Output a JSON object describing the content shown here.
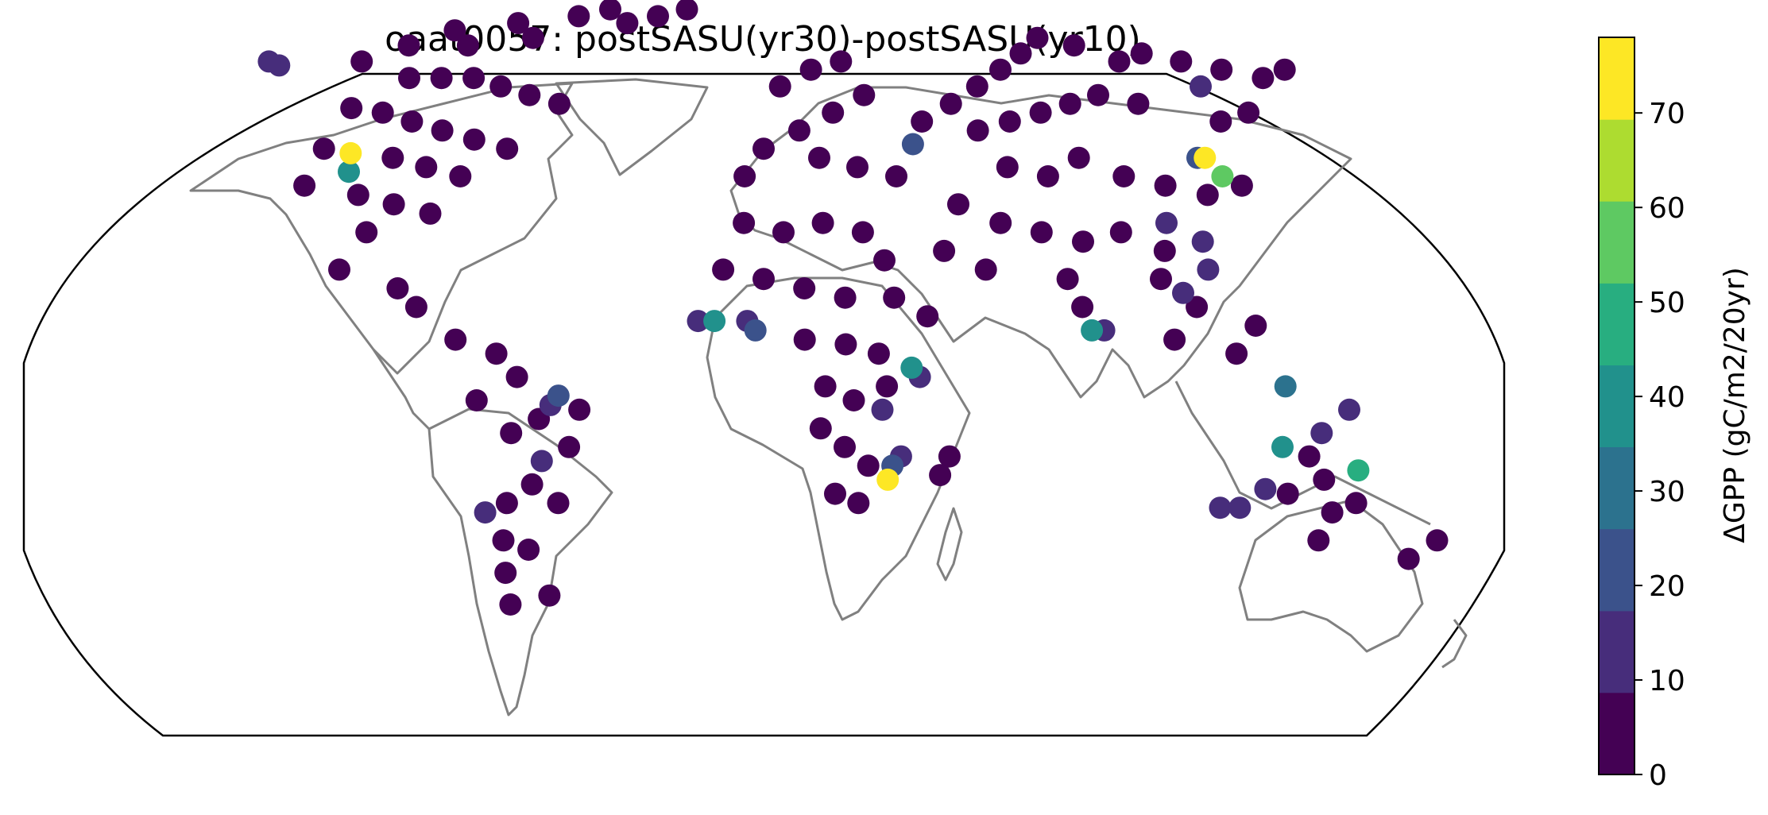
{
  "chart_data": {
    "type": "scatter",
    "projection": "Robinson",
    "title": "oaat0057: postSASU(yr30)-postSASU(yr10)",
    "colorbar": {
      "label": "ΔGPP (gC/m2/20yr)",
      "range": [
        0,
        78
      ],
      "boundaries": [
        0,
        8.67,
        17.33,
        26,
        34.67,
        43.33,
        52,
        60.67,
        69.33,
        78
      ],
      "colors": [
        "#440154",
        "#472d7b",
        "#3b528b",
        "#2c728e",
        "#21918c",
        "#28ae80",
        "#5ec962",
        "#addc30",
        "#fde725"
      ],
      "ticks": [
        0,
        10,
        20,
        30,
        40,
        50,
        60,
        70
      ]
    },
    "coastline_color": "#808080",
    "points": [
      {
        "lon": -112,
        "lat": 45,
        "v": 76
      },
      {
        "lon": -110,
        "lat": 41,
        "v": 35
      },
      {
        "lon": 119,
        "lat": 44,
        "v": 76
      },
      {
        "lon": 121,
        "lat": 40,
        "v": 58
      },
      {
        "lon": 117,
        "lat": 44,
        "v": 24
      },
      {
        "lon": 41,
        "lat": 47,
        "v": 25
      },
      {
        "lon": 31,
        "lat": -25,
        "v": 75
      },
      {
        "lon": 32,
        "lat": -22,
        "v": 25
      },
      {
        "lon": 34,
        "lat": -20,
        "v": 17
      },
      {
        "lon": 36,
        "lat": -1,
        "v": 35
      },
      {
        "lon": 38,
        "lat": -3,
        "v": 17
      },
      {
        "lon": 29,
        "lat": -10,
        "v": 15
      },
      {
        "lon": -12,
        "lat": 9,
        "v": 35
      },
      {
        "lon": -16,
        "lat": 9,
        "v": 14
      },
      {
        "lon": -4,
        "lat": 9,
        "v": 14
      },
      {
        "lon": -2,
        "lat": 7,
        "v": 22
      },
      {
        "lon": 80,
        "lat": 7,
        "v": 42
      },
      {
        "lon": 83,
        "lat": 7,
        "v": 12
      },
      {
        "lon": 103,
        "lat": 15,
        "v": 14
      },
      {
        "lon": 110,
        "lat": 26,
        "v": 17
      },
      {
        "lon": 110,
        "lat": 20,
        "v": 15
      },
      {
        "lon": 127,
        "lat": -5,
        "v": 32
      },
      {
        "lon": 128,
        "lat": -18,
        "v": 38
      },
      {
        "lon": 148,
        "lat": -23,
        "v": 45
      },
      {
        "lon": 143,
        "lat": -10,
        "v": 15
      },
      {
        "lon": 126,
        "lat": -27,
        "v": 15
      },
      {
        "lon": 116,
        "lat": -31,
        "v": 14
      },
      {
        "lon": 121,
        "lat": -31,
        "v": 14
      },
      {
        "lon": 137,
        "lat": -15,
        "v": 14
      },
      {
        "lon": -50,
        "lat": -7,
        "v": 18
      },
      {
        "lon": -52,
        "lat": -9,
        "v": 12
      },
      {
        "lon": -55,
        "lat": -21,
        "v": 12
      },
      {
        "lon": -71,
        "lat": -32,
        "v": 14
      },
      {
        "lon": 133,
        "lat": 60,
        "v": 16
      },
      {
        "lon": 102,
        "lat": 30,
        "v": 14
      },
      {
        "lon": -160,
        "lat": 66,
        "v": 14
      },
      {
        "lon": -155,
        "lat": 65,
        "v": 12
      },
      {
        "lon": -130,
        "lat": 66,
        "v": 3
      },
      {
        "lon": -120,
        "lat": 70,
        "v": 2
      },
      {
        "lon": -110,
        "lat": 74,
        "v": 3
      },
      {
        "lon": -100,
        "lat": 70,
        "v": 2
      },
      {
        "lon": -90,
        "lat": 76,
        "v": 3
      },
      {
        "lon": -80,
        "lat": 72,
        "v": 2
      },
      {
        "lon": -70,
        "lat": 78,
        "v": 3
      },
      {
        "lon": -60,
        "lat": 80,
        "v": 2
      },
      {
        "lon": -50,
        "lat": 76,
        "v": 3
      },
      {
        "lon": -40,
        "lat": 78,
        "v": 2
      },
      {
        "lon": -30,
        "lat": 80,
        "v": 3
      },
      {
        "lon": -110,
        "lat": 62,
        "v": 2
      },
      {
        "lon": -100,
        "lat": 62,
        "v": 3
      },
      {
        "lon": -90,
        "lat": 62,
        "v": 2
      },
      {
        "lon": -80,
        "lat": 60,
        "v": 3
      },
      {
        "lon": -70,
        "lat": 58,
        "v": 2
      },
      {
        "lon": -60,
        "lat": 56,
        "v": 3
      },
      {
        "lon": -120,
        "lat": 55,
        "v": 2
      },
      {
        "lon": -110,
        "lat": 54,
        "v": 3
      },
      {
        "lon": -100,
        "lat": 52,
        "v": 2
      },
      {
        "lon": -90,
        "lat": 50,
        "v": 3
      },
      {
        "lon": -80,
        "lat": 48,
        "v": 2
      },
      {
        "lon": -70,
        "lat": 46,
        "v": 3
      },
      {
        "lon": -120,
        "lat": 46,
        "v": 2
      },
      {
        "lon": -100,
        "lat": 44,
        "v": 3
      },
      {
        "lon": -90,
        "lat": 42,
        "v": 2
      },
      {
        "lon": -80,
        "lat": 40,
        "v": 3
      },
      {
        "lon": -120,
        "lat": 38,
        "v": 2
      },
      {
        "lon": -105,
        "lat": 36,
        "v": 3
      },
      {
        "lon": -95,
        "lat": 34,
        "v": 2
      },
      {
        "lon": -85,
        "lat": 32,
        "v": 3
      },
      {
        "lon": -100,
        "lat": 28,
        "v": 2
      },
      {
        "lon": -105,
        "lat": 20,
        "v": 3
      },
      {
        "lon": -90,
        "lat": 16,
        "v": 2
      },
      {
        "lon": -85,
        "lat": 12,
        "v": 3
      },
      {
        "lon": -75,
        "lat": 5,
        "v": 2
      },
      {
        "lon": -65,
        "lat": 2,
        "v": 3
      },
      {
        "lon": -60,
        "lat": -3,
        "v": 2
      },
      {
        "lon": -70,
        "lat": -8,
        "v": 3
      },
      {
        "lon": -55,
        "lat": -12,
        "v": 2
      },
      {
        "lon": -45,
        "lat": -10,
        "v": 3
      },
      {
        "lon": -62,
        "lat": -15,
        "v": 2
      },
      {
        "lon": -48,
        "lat": -18,
        "v": 3
      },
      {
        "lon": -58,
        "lat": -26,
        "v": 2
      },
      {
        "lon": -65,
        "lat": -30,
        "v": 3
      },
      {
        "lon": -68,
        "lat": -38,
        "v": 2
      },
      {
        "lon": -70,
        "lat": -45,
        "v": 3
      },
      {
        "lon": -72,
        "lat": -52,
        "v": 2
      },
      {
        "lon": -60,
        "lat": -50,
        "v": 3
      },
      {
        "lon": -62,
        "lat": -40,
        "v": 2
      },
      {
        "lon": -52,
        "lat": -30,
        "v": 3
      },
      {
        "lon": 5,
        "lat": 60,
        "v": 2
      },
      {
        "lon": 15,
        "lat": 64,
        "v": 3
      },
      {
        "lon": 25,
        "lat": 66,
        "v": 2
      },
      {
        "lon": 30,
        "lat": 58,
        "v": 3
      },
      {
        "lon": 20,
        "lat": 54,
        "v": 2
      },
      {
        "lon": 10,
        "lat": 50,
        "v": 3
      },
      {
        "lon": 0,
        "lat": 46,
        "v": 2
      },
      {
        "lon": -5,
        "lat": 40,
        "v": 3
      },
      {
        "lon": 15,
        "lat": 44,
        "v": 2
      },
      {
        "lon": 25,
        "lat": 42,
        "v": 3
      },
      {
        "lon": 35,
        "lat": 40,
        "v": 2
      },
      {
        "lon": 45,
        "lat": 52,
        "v": 3
      },
      {
        "lon": 55,
        "lat": 56,
        "v": 2
      },
      {
        "lon": 65,
        "lat": 60,
        "v": 3
      },
      {
        "lon": 75,
        "lat": 64,
        "v": 2
      },
      {
        "lon": 85,
        "lat": 68,
        "v": 3
      },
      {
        "lon": 95,
        "lat": 72,
        "v": 2
      },
      {
        "lon": 105,
        "lat": 70,
        "v": 3
      },
      {
        "lon": 115,
        "lat": 66,
        "v": 2
      },
      {
        "lon": 125,
        "lat": 68,
        "v": 3
      },
      {
        "lon": 135,
        "lat": 66,
        "v": 2
      },
      {
        "lon": 145,
        "lat": 64,
        "v": 3
      },
      {
        "lon": 155,
        "lat": 62,
        "v": 2
      },
      {
        "lon": 165,
        "lat": 64,
        "v": 3
      },
      {
        "lon": 60,
        "lat": 50,
        "v": 2
      },
      {
        "lon": 70,
        "lat": 52,
        "v": 3
      },
      {
        "lon": 80,
        "lat": 54,
        "v": 2
      },
      {
        "lon": 90,
        "lat": 56,
        "v": 3
      },
      {
        "lon": 100,
        "lat": 58,
        "v": 2
      },
      {
        "lon": 110,
        "lat": 56,
        "v": 3
      },
      {
        "lon": 130,
        "lat": 52,
        "v": 2
      },
      {
        "lon": 140,
        "lat": 54,
        "v": 3
      },
      {
        "lon": 65,
        "lat": 42,
        "v": 2
      },
      {
        "lon": 75,
        "lat": 40,
        "v": 3
      },
      {
        "lon": 85,
        "lat": 44,
        "v": 2
      },
      {
        "lon": 95,
        "lat": 40,
        "v": 3
      },
      {
        "lon": 105,
        "lat": 38,
        "v": 2
      },
      {
        "lon": 115,
        "lat": 36,
        "v": 3
      },
      {
        "lon": 125,
        "lat": 38,
        "v": 2
      },
      {
        "lon": 50,
        "lat": 34,
        "v": 3
      },
      {
        "lon": 60,
        "lat": 30,
        "v": 2
      },
      {
        "lon": 70,
        "lat": 28,
        "v": 3
      },
      {
        "lon": 80,
        "lat": 26,
        "v": 2
      },
      {
        "lon": 90,
        "lat": 28,
        "v": 3
      },
      {
        "lon": 100,
        "lat": 24,
        "v": 2
      },
      {
        "lon": 45,
        "lat": 24,
        "v": 3
      },
      {
        "lon": 55,
        "lat": 20,
        "v": 2
      },
      {
        "lon": 75,
        "lat": 18,
        "v": 3
      },
      {
        "lon": 78,
        "lat": 12,
        "v": 2
      },
      {
        "lon": 98,
        "lat": 18,
        "v": 3
      },
      {
        "lon": 106,
        "lat": 12,
        "v": 2
      },
      {
        "lon": 100,
        "lat": 5,
        "v": 3
      },
      {
        "lon": 115,
        "lat": 2,
        "v": 2
      },
      {
        "lon": 120,
        "lat": 8,
        "v": 3
      },
      {
        "lon": -5,
        "lat": 30,
        "v": 2
      },
      {
        "lon": 5,
        "lat": 28,
        "v": 3
      },
      {
        "lon": 15,
        "lat": 30,
        "v": 2
      },
      {
        "lon": 25,
        "lat": 28,
        "v": 3
      },
      {
        "lon": 30,
        "lat": 22,
        "v": 2
      },
      {
        "lon": -10,
        "lat": 20,
        "v": 3
      },
      {
        "lon": 0,
        "lat": 18,
        "v": 2
      },
      {
        "lon": 10,
        "lat": 16,
        "v": 3
      },
      {
        "lon": 20,
        "lat": 14,
        "v": 2
      },
      {
        "lon": 32,
        "lat": 14,
        "v": 3
      },
      {
        "lon": 40,
        "lat": 10,
        "v": 2
      },
      {
        "lon": 10,
        "lat": 5,
        "v": 3
      },
      {
        "lon": 20,
        "lat": 4,
        "v": 2
      },
      {
        "lon": 28,
        "lat": 2,
        "v": 3
      },
      {
        "lon": 15,
        "lat": -5,
        "v": 2
      },
      {
        "lon": 22,
        "lat": -8,
        "v": 3
      },
      {
        "lon": 30,
        "lat": -5,
        "v": 2
      },
      {
        "lon": 14,
        "lat": -14,
        "v": 3
      },
      {
        "lon": 20,
        "lat": -18,
        "v": 2
      },
      {
        "lon": 26,
        "lat": -22,
        "v": 3
      },
      {
        "lon": 18,
        "lat": -28,
        "v": 2
      },
      {
        "lon": 24,
        "lat": -30,
        "v": 3
      },
      {
        "lon": 46,
        "lat": -20,
        "v": 2
      },
      {
        "lon": 44,
        "lat": -24,
        "v": 3
      },
      {
        "lon": 135,
        "lat": -20,
        "v": 2
      },
      {
        "lon": 140,
        "lat": -25,
        "v": 3
      },
      {
        "lon": 145,
        "lat": -32,
        "v": 2
      },
      {
        "lon": 150,
        "lat": -30,
        "v": 3
      },
      {
        "lon": 132,
        "lat": -28,
        "v": 2
      },
      {
        "lon": 145,
        "lat": -38,
        "v": 3
      },
      {
        "lon": 172,
        "lat": -42,
        "v": 2
      },
      {
        "lon": 176,
        "lat": -38,
        "v": 3
      }
    ]
  }
}
